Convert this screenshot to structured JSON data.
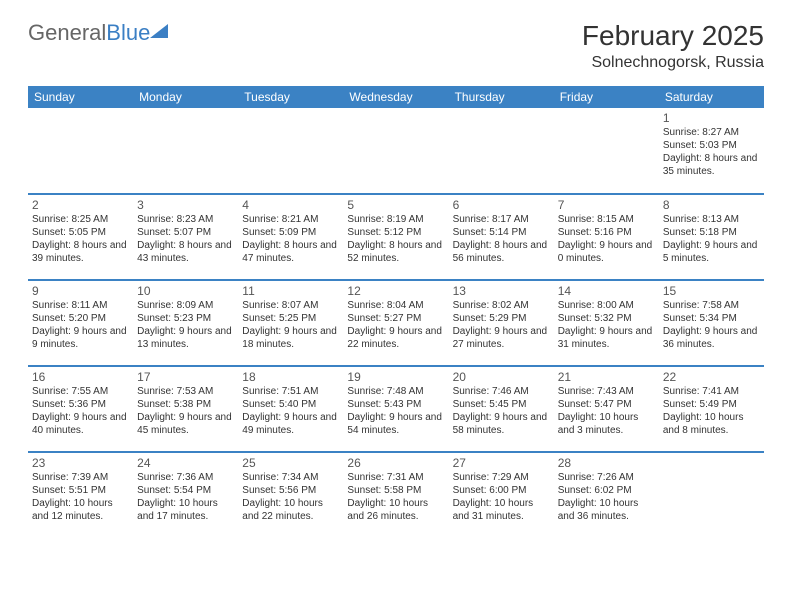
{
  "logo": {
    "text1": "General",
    "text2": "Blue"
  },
  "title": "February 2025",
  "location": "Solnechnogorsk, Russia",
  "day_headers": [
    "Sunday",
    "Monday",
    "Tuesday",
    "Wednesday",
    "Thursday",
    "Friday",
    "Saturday"
  ],
  "colors": {
    "header_bg": "#3b82c4",
    "border": "#3b82c4",
    "logo_blue": "#3b7fc4"
  },
  "weeks": [
    [
      null,
      null,
      null,
      null,
      null,
      null,
      {
        "n": "1",
        "sunrise": "8:27 AM",
        "sunset": "5:03 PM",
        "dl": "8 hours and 35 minutes."
      }
    ],
    [
      {
        "n": "2",
        "sunrise": "8:25 AM",
        "sunset": "5:05 PM",
        "dl": "8 hours and 39 minutes."
      },
      {
        "n": "3",
        "sunrise": "8:23 AM",
        "sunset": "5:07 PM",
        "dl": "8 hours and 43 minutes."
      },
      {
        "n": "4",
        "sunrise": "8:21 AM",
        "sunset": "5:09 PM",
        "dl": "8 hours and 47 minutes."
      },
      {
        "n": "5",
        "sunrise": "8:19 AM",
        "sunset": "5:12 PM",
        "dl": "8 hours and 52 minutes."
      },
      {
        "n": "6",
        "sunrise": "8:17 AM",
        "sunset": "5:14 PM",
        "dl": "8 hours and 56 minutes."
      },
      {
        "n": "7",
        "sunrise": "8:15 AM",
        "sunset": "5:16 PM",
        "dl": "9 hours and 0 minutes."
      },
      {
        "n": "8",
        "sunrise": "8:13 AM",
        "sunset": "5:18 PM",
        "dl": "9 hours and 5 minutes."
      }
    ],
    [
      {
        "n": "9",
        "sunrise": "8:11 AM",
        "sunset": "5:20 PM",
        "dl": "9 hours and 9 minutes."
      },
      {
        "n": "10",
        "sunrise": "8:09 AM",
        "sunset": "5:23 PM",
        "dl": "9 hours and 13 minutes."
      },
      {
        "n": "11",
        "sunrise": "8:07 AM",
        "sunset": "5:25 PM",
        "dl": "9 hours and 18 minutes."
      },
      {
        "n": "12",
        "sunrise": "8:04 AM",
        "sunset": "5:27 PM",
        "dl": "9 hours and 22 minutes."
      },
      {
        "n": "13",
        "sunrise": "8:02 AM",
        "sunset": "5:29 PM",
        "dl": "9 hours and 27 minutes."
      },
      {
        "n": "14",
        "sunrise": "8:00 AM",
        "sunset": "5:32 PM",
        "dl": "9 hours and 31 minutes."
      },
      {
        "n": "15",
        "sunrise": "7:58 AM",
        "sunset": "5:34 PM",
        "dl": "9 hours and 36 minutes."
      }
    ],
    [
      {
        "n": "16",
        "sunrise": "7:55 AM",
        "sunset": "5:36 PM",
        "dl": "9 hours and 40 minutes."
      },
      {
        "n": "17",
        "sunrise": "7:53 AM",
        "sunset": "5:38 PM",
        "dl": "9 hours and 45 minutes."
      },
      {
        "n": "18",
        "sunrise": "7:51 AM",
        "sunset": "5:40 PM",
        "dl": "9 hours and 49 minutes."
      },
      {
        "n": "19",
        "sunrise": "7:48 AM",
        "sunset": "5:43 PM",
        "dl": "9 hours and 54 minutes."
      },
      {
        "n": "20",
        "sunrise": "7:46 AM",
        "sunset": "5:45 PM",
        "dl": "9 hours and 58 minutes."
      },
      {
        "n": "21",
        "sunrise": "7:43 AM",
        "sunset": "5:47 PM",
        "dl": "10 hours and 3 minutes."
      },
      {
        "n": "22",
        "sunrise": "7:41 AM",
        "sunset": "5:49 PM",
        "dl": "10 hours and 8 minutes."
      }
    ],
    [
      {
        "n": "23",
        "sunrise": "7:39 AM",
        "sunset": "5:51 PM",
        "dl": "10 hours and 12 minutes."
      },
      {
        "n": "24",
        "sunrise": "7:36 AM",
        "sunset": "5:54 PM",
        "dl": "10 hours and 17 minutes."
      },
      {
        "n": "25",
        "sunrise": "7:34 AM",
        "sunset": "5:56 PM",
        "dl": "10 hours and 22 minutes."
      },
      {
        "n": "26",
        "sunrise": "7:31 AM",
        "sunset": "5:58 PM",
        "dl": "10 hours and 26 minutes."
      },
      {
        "n": "27",
        "sunrise": "7:29 AM",
        "sunset": "6:00 PM",
        "dl": "10 hours and 31 minutes."
      },
      {
        "n": "28",
        "sunrise": "7:26 AM",
        "sunset": "6:02 PM",
        "dl": "10 hours and 36 minutes."
      },
      null
    ]
  ],
  "labels": {
    "sunrise": "Sunrise: ",
    "sunset": "Sunset: ",
    "daylight": "Daylight: "
  }
}
